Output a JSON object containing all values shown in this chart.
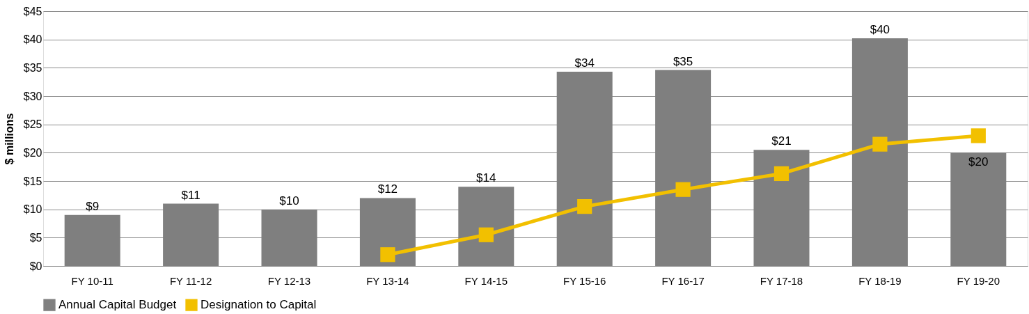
{
  "chart_data": {
    "type": "bar",
    "ylabel": "$ millions",
    "categories": [
      "FY 10-11",
      "FY 11-12",
      "FY 12-13",
      "FY 13-14",
      "FY 14-15",
      "FY 15-16",
      "FY 16-17",
      "FY 17-18",
      "FY 18-19",
      "FY 19-20"
    ],
    "series": [
      {
        "name": "Annual Capital Budget",
        "color": "#7f7f7f",
        "values": [
          9,
          11,
          10,
          12,
          14,
          34.3,
          34.6,
          20.5,
          40.2,
          20
        ],
        "value_labels": [
          "$9",
          "$11",
          "$10",
          "$12",
          "$14",
          "$34",
          "$35",
          "$21",
          "$40",
          "$20"
        ]
      },
      {
        "name": "Designation to Capital",
        "type": "line",
        "color": "#f2c000",
        "marker": "square",
        "values": [
          null,
          null,
          null,
          2,
          5.5,
          10.5,
          13.5,
          16.3,
          21.5,
          23
        ]
      }
    ],
    "ylim": [
      0,
      45
    ],
    "yticks": [
      {
        "value": 0,
        "label": "$0"
      },
      {
        "value": 5,
        "label": "$5"
      },
      {
        "value": 10,
        "label": "$10"
      },
      {
        "value": 15,
        "label": "$15"
      },
      {
        "value": 20,
        "label": "$20"
      },
      {
        "value": 25,
        "label": "$25"
      },
      {
        "value": 30,
        "label": "$30"
      },
      {
        "value": 35,
        "label": "$35"
      },
      {
        "value": 40,
        "label": "$40"
      },
      {
        "value": 45,
        "label": "$45"
      }
    ],
    "grid": "y",
    "legend": "bottom"
  }
}
